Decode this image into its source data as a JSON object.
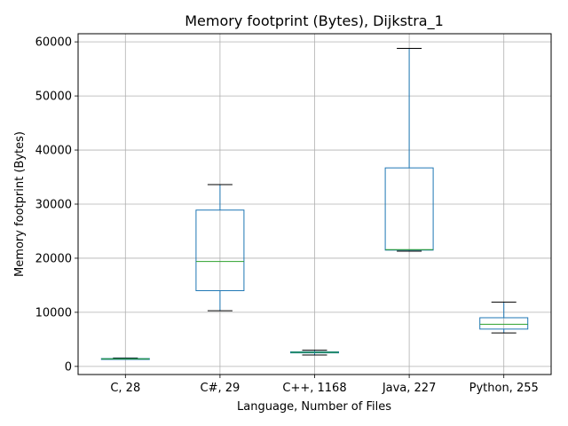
{
  "chart_data": {
    "type": "box",
    "title": "Memory footprint (Bytes), Dijkstra_1",
    "xlabel": "Language, Number of Files",
    "ylabel": "Memory footprint (Bytes)",
    "ylim": [
      -1500,
      61500
    ],
    "yticks": [
      0,
      10000,
      20000,
      30000,
      40000,
      50000,
      60000
    ],
    "grid": true,
    "categories": [
      "C, 28",
      "C#, 29",
      "C++, 1168",
      "Java, 227",
      "Python, 255"
    ],
    "boxes": [
      {
        "whisker_low": 1350,
        "q1": 1350,
        "median": 1400,
        "q3": 1450,
        "whisker_high": 1550
      },
      {
        "whisker_low": 10300,
        "q1": 14000,
        "median": 19400,
        "q3": 28900,
        "whisker_high": 33600
      },
      {
        "whisker_low": 2100,
        "q1": 2500,
        "median": 2600,
        "q3": 2700,
        "whisker_high": 3000
      },
      {
        "whisker_low": 21300,
        "q1": 21500,
        "median": 21600,
        "q3": 36700,
        "whisker_high": 58800
      },
      {
        "whisker_low": 6200,
        "q1": 6900,
        "median": 7800,
        "q3": 9000,
        "whisker_high": 11900
      }
    ],
    "colors": {
      "box": "#1f77b4",
      "median": "#2ca02c",
      "cap": "#000000",
      "grid": "#b0b0b0"
    }
  }
}
